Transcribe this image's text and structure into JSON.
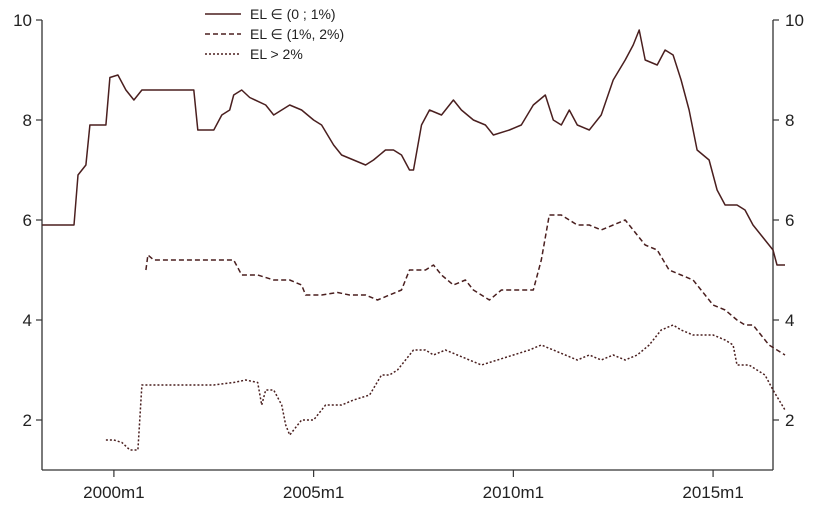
{
  "chart_data": {
    "type": "line",
    "title": "",
    "xlabel": "",
    "ylabel": "",
    "xlim": [
      1998.2,
      2016.5
    ],
    "ylim": [
      1,
      10
    ],
    "x_ticks": [
      {
        "value": 2000,
        "label": "2000m1"
      },
      {
        "value": 2005,
        "label": "2005m1"
      },
      {
        "value": 2010,
        "label": "2010m1"
      },
      {
        "value": 2015,
        "label": "2015m1"
      }
    ],
    "y_ticks": [
      {
        "value": 2,
        "label": "2"
      },
      {
        "value": 4,
        "label": "4"
      },
      {
        "value": 6,
        "label": "6"
      },
      {
        "value": 8,
        "label": "8"
      },
      {
        "value": 10,
        "label": "10"
      }
    ],
    "secondary_y_axis": true,
    "grid": false,
    "legend_position": "top-center",
    "line_color": "#4a1f1f",
    "series": [
      {
        "name": "EL ∈ (0 ; 1%)",
        "dash": "solid",
        "points": [
          [
            1998.2,
            5.9
          ],
          [
            1999.0,
            5.9
          ],
          [
            1999.1,
            6.9
          ],
          [
            1999.3,
            7.1
          ],
          [
            1999.4,
            7.9
          ],
          [
            1999.8,
            7.9
          ],
          [
            1999.9,
            8.85
          ],
          [
            2000.1,
            8.9
          ],
          [
            2000.3,
            8.6
          ],
          [
            2000.5,
            8.4
          ],
          [
            2000.7,
            8.6
          ],
          [
            2001.2,
            8.6
          ],
          [
            2001.4,
            8.6
          ],
          [
            2002.0,
            8.6
          ],
          [
            2002.1,
            7.8
          ],
          [
            2002.5,
            7.8
          ],
          [
            2002.7,
            8.1
          ],
          [
            2002.9,
            8.2
          ],
          [
            2003.0,
            8.5
          ],
          [
            2003.2,
            8.6
          ],
          [
            2003.4,
            8.45
          ],
          [
            2003.8,
            8.3
          ],
          [
            2004.0,
            8.1
          ],
          [
            2004.4,
            8.3
          ],
          [
            2004.7,
            8.2
          ],
          [
            2005.0,
            8.0
          ],
          [
            2005.2,
            7.9
          ],
          [
            2005.5,
            7.5
          ],
          [
            2005.7,
            7.3
          ],
          [
            2006.0,
            7.2
          ],
          [
            2006.3,
            7.1
          ],
          [
            2006.5,
            7.2
          ],
          [
            2006.8,
            7.4
          ],
          [
            2007.0,
            7.4
          ],
          [
            2007.2,
            7.3
          ],
          [
            2007.4,
            7.0
          ],
          [
            2007.5,
            7.0
          ],
          [
            2007.7,
            7.9
          ],
          [
            2007.9,
            8.2
          ],
          [
            2008.2,
            8.1
          ],
          [
            2008.5,
            8.4
          ],
          [
            2008.7,
            8.2
          ],
          [
            2009.0,
            8.0
          ],
          [
            2009.3,
            7.9
          ],
          [
            2009.5,
            7.7
          ],
          [
            2009.9,
            7.8
          ],
          [
            2010.2,
            7.9
          ],
          [
            2010.5,
            8.3
          ],
          [
            2010.8,
            8.5
          ],
          [
            2011.0,
            8.0
          ],
          [
            2011.2,
            7.9
          ],
          [
            2011.4,
            8.2
          ],
          [
            2011.6,
            7.9
          ],
          [
            2011.9,
            7.8
          ],
          [
            2012.2,
            8.1
          ],
          [
            2012.5,
            8.8
          ],
          [
            2012.8,
            9.2
          ],
          [
            2013.0,
            9.5
          ],
          [
            2013.15,
            9.8
          ],
          [
            2013.3,
            9.2
          ],
          [
            2013.6,
            9.1
          ],
          [
            2013.8,
            9.4
          ],
          [
            2014.0,
            9.3
          ],
          [
            2014.2,
            8.8
          ],
          [
            2014.4,
            8.2
          ],
          [
            2014.6,
            7.4
          ],
          [
            2014.9,
            7.2
          ],
          [
            2015.1,
            6.6
          ],
          [
            2015.3,
            6.3
          ],
          [
            2015.6,
            6.3
          ],
          [
            2015.8,
            6.2
          ],
          [
            2016.0,
            5.9
          ],
          [
            2016.2,
            5.7
          ],
          [
            2016.4,
            5.5
          ],
          [
            2016.5,
            5.4
          ],
          [
            2016.6,
            5.1
          ],
          [
            2016.8,
            5.1
          ]
        ]
      },
      {
        "name": "EL ∈ (1%, 2%)",
        "dash": "dashed",
        "points": [
          [
            2000.8,
            5.0
          ],
          [
            2000.85,
            5.3
          ],
          [
            2001.0,
            5.2
          ],
          [
            2001.5,
            5.2
          ],
          [
            2002.0,
            5.2
          ],
          [
            2002.5,
            5.2
          ],
          [
            2003.0,
            5.2
          ],
          [
            2003.2,
            4.9
          ],
          [
            2003.6,
            4.9
          ],
          [
            2004.0,
            4.8
          ],
          [
            2004.4,
            4.8
          ],
          [
            2004.7,
            4.7
          ],
          [
            2004.8,
            4.5
          ],
          [
            2005.2,
            4.5
          ],
          [
            2005.6,
            4.55
          ],
          [
            2005.9,
            4.5
          ],
          [
            2006.3,
            4.5
          ],
          [
            2006.6,
            4.4
          ],
          [
            2006.9,
            4.5
          ],
          [
            2007.2,
            4.6
          ],
          [
            2007.4,
            5.0
          ],
          [
            2007.8,
            5.0
          ],
          [
            2008.0,
            5.1
          ],
          [
            2008.2,
            4.9
          ],
          [
            2008.5,
            4.7
          ],
          [
            2008.8,
            4.8
          ],
          [
            2009.0,
            4.6
          ],
          [
            2009.4,
            4.4
          ],
          [
            2009.7,
            4.6
          ],
          [
            2010.2,
            4.6
          ],
          [
            2010.5,
            4.6
          ],
          [
            2010.7,
            5.2
          ],
          [
            2010.9,
            6.1
          ],
          [
            2011.2,
            6.1
          ],
          [
            2011.4,
            6.0
          ],
          [
            2011.6,
            5.9
          ],
          [
            2011.9,
            5.9
          ],
          [
            2012.2,
            5.8
          ],
          [
            2012.5,
            5.9
          ],
          [
            2012.8,
            6.0
          ],
          [
            2013.0,
            5.8
          ],
          [
            2013.3,
            5.5
          ],
          [
            2013.6,
            5.4
          ],
          [
            2013.9,
            5.0
          ],
          [
            2014.2,
            4.9
          ],
          [
            2014.5,
            4.8
          ],
          [
            2014.8,
            4.5
          ],
          [
            2015.0,
            4.3
          ],
          [
            2015.3,
            4.2
          ],
          [
            2015.6,
            4.0
          ],
          [
            2015.8,
            3.9
          ],
          [
            2016.0,
            3.9
          ],
          [
            2016.2,
            3.7
          ],
          [
            2016.4,
            3.5
          ],
          [
            2016.6,
            3.4
          ],
          [
            2016.8,
            3.3
          ]
        ]
      },
      {
        "name": "EL > 2%",
        "dash": "dotted",
        "points": [
          [
            1999.8,
            1.6
          ],
          [
            2000.0,
            1.6
          ],
          [
            2000.2,
            1.55
          ],
          [
            2000.4,
            1.4
          ],
          [
            2000.6,
            1.4
          ],
          [
            2000.7,
            2.7
          ],
          [
            2001.2,
            2.7
          ],
          [
            2001.8,
            2.7
          ],
          [
            2002.5,
            2.7
          ],
          [
            2003.0,
            2.75
          ],
          [
            2003.3,
            2.8
          ],
          [
            2003.6,
            2.75
          ],
          [
            2003.7,
            2.3
          ],
          [
            2003.8,
            2.6
          ],
          [
            2004.0,
            2.6
          ],
          [
            2004.2,
            2.3
          ],
          [
            2004.3,
            1.9
          ],
          [
            2004.4,
            1.7
          ],
          [
            2004.5,
            1.8
          ],
          [
            2004.7,
            2.0
          ],
          [
            2005.0,
            2.0
          ],
          [
            2005.3,
            2.3
          ],
          [
            2005.7,
            2.3
          ],
          [
            2006.0,
            2.4
          ],
          [
            2006.4,
            2.5
          ],
          [
            2006.7,
            2.9
          ],
          [
            2006.9,
            2.9
          ],
          [
            2007.1,
            3.0
          ],
          [
            2007.3,
            3.2
          ],
          [
            2007.5,
            3.4
          ],
          [
            2007.8,
            3.4
          ],
          [
            2008.0,
            3.3
          ],
          [
            2008.3,
            3.4
          ],
          [
            2008.6,
            3.3
          ],
          [
            2008.9,
            3.2
          ],
          [
            2009.2,
            3.1
          ],
          [
            2009.6,
            3.2
          ],
          [
            2010.0,
            3.3
          ],
          [
            2010.4,
            3.4
          ],
          [
            2010.7,
            3.5
          ],
          [
            2011.0,
            3.4
          ],
          [
            2011.3,
            3.3
          ],
          [
            2011.6,
            3.2
          ],
          [
            2011.9,
            3.3
          ],
          [
            2012.2,
            3.2
          ],
          [
            2012.5,
            3.3
          ],
          [
            2012.8,
            3.2
          ],
          [
            2013.1,
            3.3
          ],
          [
            2013.4,
            3.5
          ],
          [
            2013.7,
            3.8
          ],
          [
            2014.0,
            3.9
          ],
          [
            2014.2,
            3.8
          ],
          [
            2014.5,
            3.7
          ],
          [
            2014.8,
            3.7
          ],
          [
            2015.0,
            3.7
          ],
          [
            2015.3,
            3.6
          ],
          [
            2015.5,
            3.5
          ],
          [
            2015.6,
            3.1
          ],
          [
            2015.9,
            3.1
          ],
          [
            2016.1,
            3.0
          ],
          [
            2016.3,
            2.9
          ],
          [
            2016.5,
            2.6
          ],
          [
            2016.8,
            2.2
          ]
        ]
      }
    ]
  }
}
